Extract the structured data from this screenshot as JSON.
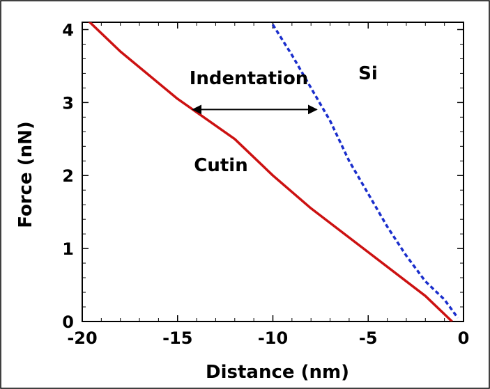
{
  "chart_data": {
    "type": "line",
    "title": "",
    "xlabel": "Distance (nm)",
    "ylabel": "Force (nN)",
    "xlim": [
      -20,
      0
    ],
    "ylim": [
      0,
      4.1
    ],
    "x_ticks": [
      "-20",
      "-15",
      "-10",
      "-5",
      "0"
    ],
    "y_ticks": [
      "0",
      "1",
      "2",
      "3",
      "4"
    ],
    "grid": false,
    "legend": "none",
    "series": [
      {
        "label": "Cutin",
        "color": "#cc1111",
        "style": "solid",
        "x": [
          -20.2,
          -18.0,
          -15.0,
          -12.0,
          -10.0,
          -8.0,
          -5.0,
          -2.0,
          -0.6
        ],
        "y": [
          4.25,
          3.7,
          3.05,
          2.5,
          2.0,
          1.55,
          0.95,
          0.35,
          0.0
        ]
      },
      {
        "label": "Si",
        "color": "#1a2ecc",
        "style": "dashed",
        "x": [
          -10.2,
          -9.0,
          -8.0,
          -7.0,
          -6.0,
          -5.0,
          -4.0,
          -3.0,
          -2.0,
          -1.0,
          -0.3
        ],
        "y": [
          4.15,
          3.65,
          3.2,
          2.75,
          2.2,
          1.75,
          1.3,
          0.9,
          0.55,
          0.3,
          0.05
        ]
      }
    ],
    "annotations": {
      "indentation": {
        "text": "Indentation",
        "from": [
          -14.2,
          3.0
        ],
        "to": [
          -7.7,
          3.0
        ]
      }
    }
  }
}
